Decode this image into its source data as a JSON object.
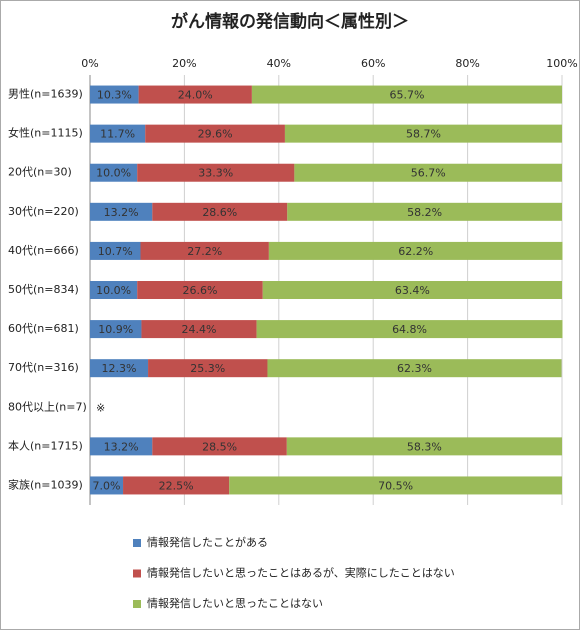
{
  "chart_data": {
    "type": "stacked-bar-horizontal",
    "title": "がん情報の発信動向＜属性別＞",
    "categories": [
      "男性(n=1639)",
      "女性(n=1115)",
      "20代(n=30)",
      "30代(n=220)",
      "40代(n=666)",
      "50代(n=834)",
      "60代(n=681)",
      "70代(n=316)",
      "80代以上(n=7)",
      "本人(n=1715)",
      "家族(n=1039)"
    ],
    "series": [
      {
        "name": "情報発信したことがある",
        "color": "#4f81bd",
        "values": [
          10.3,
          11.7,
          10.0,
          13.2,
          10.7,
          10.0,
          10.9,
          12.3,
          null,
          13.2,
          7.0
        ],
        "value_labels": [
          "10.3%",
          "11.7%",
          "10.0%",
          "13.2%",
          "10.7%",
          "10.0%",
          "10.9%",
          "12.3%",
          null,
          "13.2%",
          "7.0%"
        ]
      },
      {
        "name": "情報発信したいと思ったことはあるが、実際にしたことはない",
        "color": "#c0504d",
        "values": [
          24.0,
          29.6,
          33.3,
          28.6,
          27.2,
          26.6,
          24.4,
          25.3,
          null,
          28.5,
          22.5
        ],
        "value_labels": [
          "24.0%",
          "29.6%",
          "33.3%",
          "28.6%",
          "27.2%",
          "26.6%",
          "24.4%",
          "25.3%",
          null,
          "28.5%",
          "22.5%"
        ]
      },
      {
        "name": "情報発信したいと思ったことはない",
        "color": "#9bbb59",
        "values": [
          65.7,
          58.7,
          56.7,
          58.2,
          62.2,
          63.4,
          64.8,
          62.3,
          null,
          58.3,
          70.5
        ],
        "value_labels": [
          "65.7%",
          "58.7%",
          "56.7%",
          "58.2%",
          "62.2%",
          "63.4%",
          "64.8%",
          "62.3%",
          null,
          "58.3%",
          "70.5%"
        ]
      }
    ],
    "annotation": "※",
    "xlim": [
      0,
      100
    ],
    "xticks": [
      {
        "value": 0,
        "label": "0%"
      },
      {
        "value": 20,
        "label": "20%"
      },
      {
        "value": 40,
        "label": "40%"
      },
      {
        "value": 60,
        "label": "60%"
      },
      {
        "value": 80,
        "label": "80%"
      },
      {
        "value": 100,
        "label": "100%"
      }
    ],
    "grid": true
  }
}
